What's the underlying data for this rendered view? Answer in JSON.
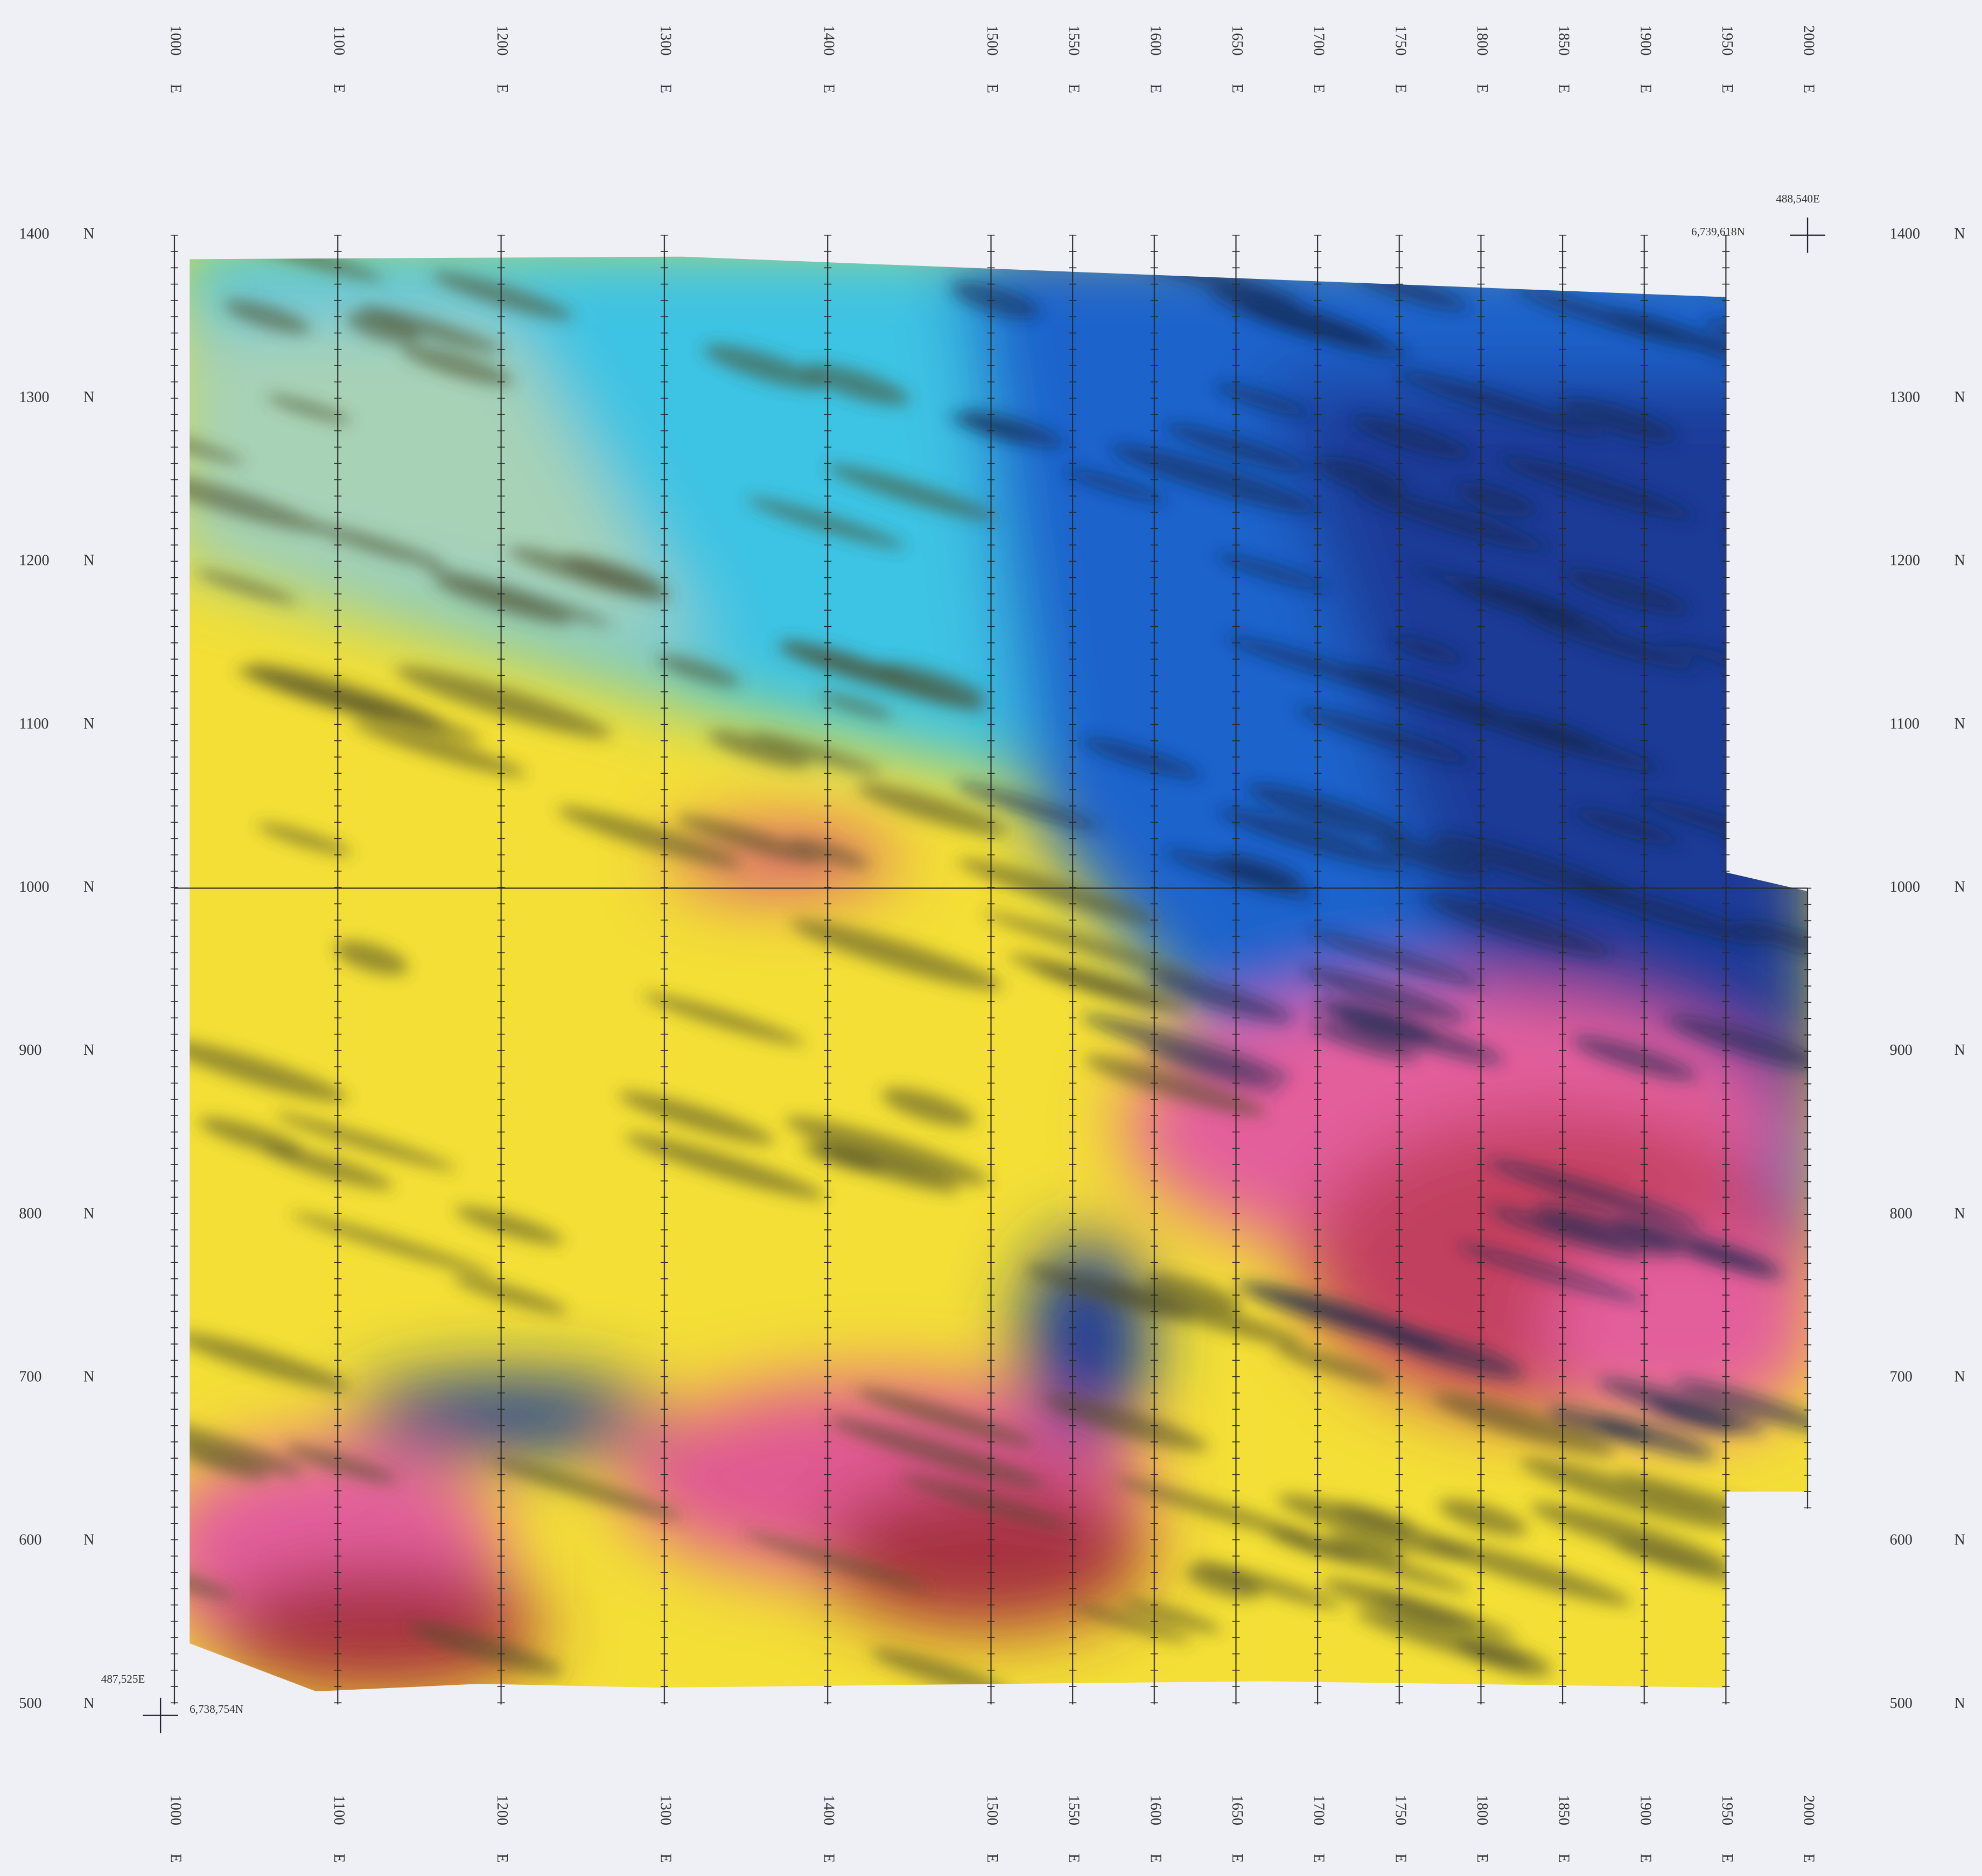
{
  "map": {
    "eastings": [
      1000,
      1100,
      1200,
      1300,
      1400,
      1500,
      1550,
      1600,
      1650,
      1700,
      1750,
      1800,
      1850,
      1900,
      1950,
      2000
    ],
    "easting_unit": "E",
    "northings": [
      1400,
      1300,
      1200,
      1100,
      1000,
      900,
      800,
      700,
      600,
      500
    ],
    "northing_unit": "N",
    "sw_corner": {
      "easting": "487,525E",
      "northing": "6,738,754N"
    },
    "ne_corner": {
      "easting": "488,540E",
      "northing": "6,739,618N"
    }
  }
}
